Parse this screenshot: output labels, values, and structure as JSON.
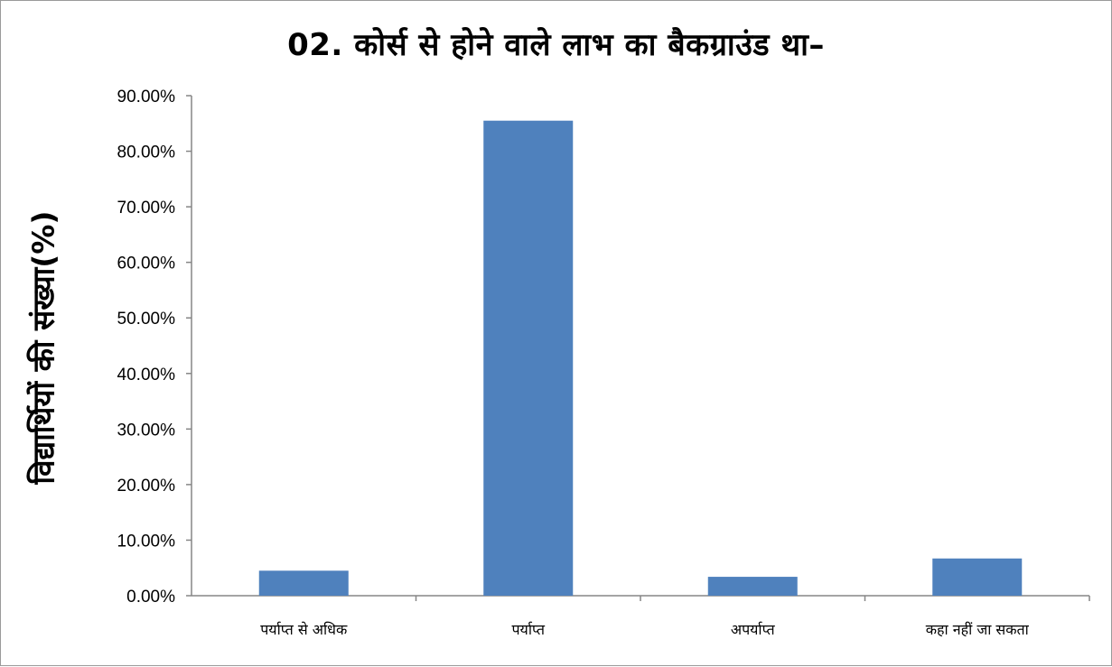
{
  "chart_data": {
    "type": "bar",
    "title": "02. कोर्स से होने वाले लाभ का बैकग्राउंड था–",
    "xlabel": "",
    "ylabel": "विद्यार्थियों की संख्या(%)",
    "categories": [
      "पर्याप्त से अधिक",
      "पर्याप्त",
      "अपर्याप्त",
      "कहा नहीं जा सकता"
    ],
    "values": [
      4.5,
      85.5,
      3.4,
      6.7
    ],
    "ylim": [
      0,
      90
    ],
    "yticks": [
      "0.00%",
      "10.00%",
      "20.00%",
      "30.00%",
      "40.00%",
      "50.00%",
      "60.00%",
      "70.00%",
      "80.00%",
      "90.00%"
    ],
    "bar_color": "#4f81bd",
    "grid": false,
    "legend": "none"
  }
}
